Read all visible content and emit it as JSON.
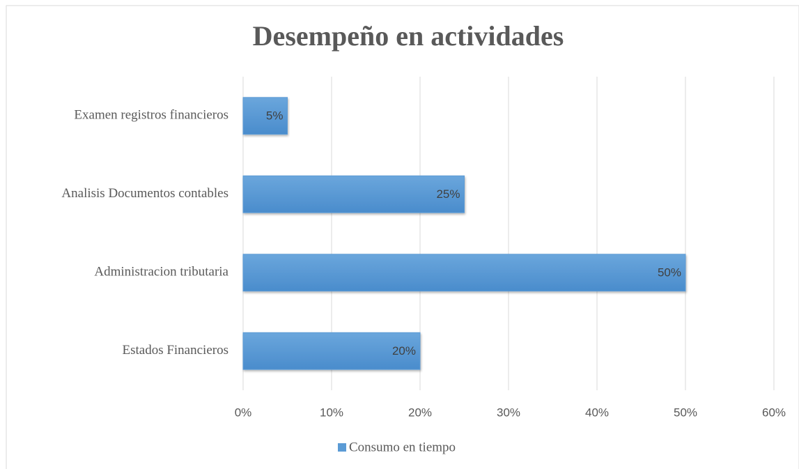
{
  "chart_data": {
    "type": "bar",
    "orientation": "horizontal",
    "title": "Desempeño en actividades",
    "categories": [
      "Examen registros financieros",
      "Analisis Documentos contables",
      "Administracion tributaria",
      "Estados Financieros"
    ],
    "series": [
      {
        "name": "Consumo en tiempo",
        "color": "#5b9bd5",
        "values": [
          5,
          25,
          50,
          20
        ],
        "value_labels": [
          "5%",
          "25%",
          "50%",
          "20%"
        ]
      }
    ],
    "xlim": [
      0,
      60
    ],
    "xticks": [
      {
        "value": 0,
        "label": "0%"
      },
      {
        "value": 10,
        "label": "10%"
      },
      {
        "value": 20,
        "label": "20%"
      },
      {
        "value": 30,
        "label": "30%"
      },
      {
        "value": 40,
        "label": "40%"
      },
      {
        "value": 50,
        "label": "50%"
      },
      {
        "value": 60,
        "label": "60%"
      }
    ],
    "grid": true,
    "legend": "bottom"
  }
}
